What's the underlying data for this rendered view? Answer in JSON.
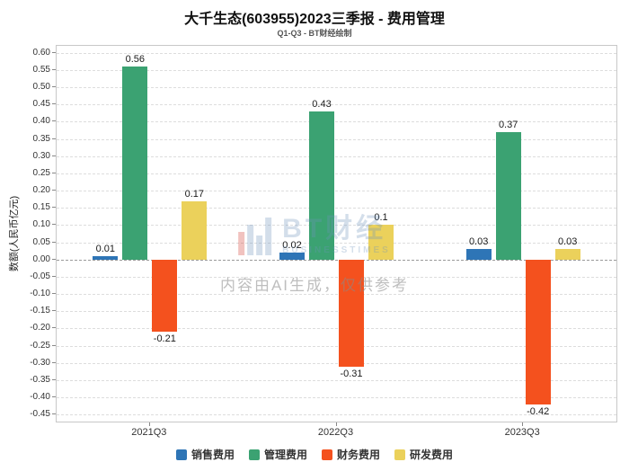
{
  "chart_data": {
    "type": "bar",
    "title": "大千生态(603955)2023三季报 - 费用管理",
    "subtitle": "Q1-Q3 - BT财经绘制",
    "xlabel": "",
    "ylabel": "数额(人民币亿元)",
    "categories": [
      "2021Q3",
      "2022Q3",
      "2023Q3"
    ],
    "series": [
      {
        "name": "销售费用",
        "color": "#2E75B6",
        "values": [
          0.01,
          0.02,
          0.03
        ]
      },
      {
        "name": "管理费用",
        "color": "#3BA272",
        "values": [
          0.56,
          0.43,
          0.37
        ]
      },
      {
        "name": "财务费用",
        "color": "#F4511E",
        "values": [
          -0.21,
          -0.31,
          -0.42
        ]
      },
      {
        "name": "研发费用",
        "color": "#EBD15B",
        "values": [
          0.17,
          0.1,
          0.03
        ]
      }
    ],
    "ylim": [
      -0.45,
      0.6
    ],
    "ytick_step": 0.05,
    "grid": true,
    "legend_position": "bottom"
  },
  "watermark": {
    "logo_text": "BT财经",
    "logo_subtext": "BUSINESSTIMES",
    "disclaimer": "内容由AI生成，仅供参考"
  }
}
